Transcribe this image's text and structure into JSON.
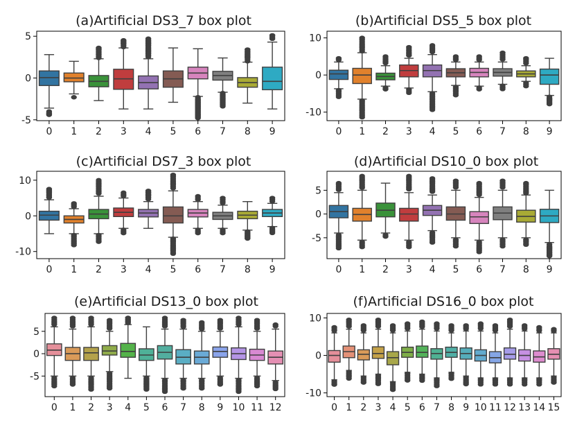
{
  "chart_data": [
    {
      "type": "box",
      "title": "(a)Artificial DS3_7 box plot",
      "categories": [
        "0",
        "1",
        "2",
        "3",
        "4",
        "5",
        "6",
        "7",
        "8",
        "9"
      ],
      "ylim": [
        -5.1,
        5.6
      ],
      "yticks": [
        -5,
        0,
        5
      ],
      "colors": [
        "#3274a1",
        "#e1812c",
        "#3a923a",
        "#c03d3e",
        "#9372b2",
        "#845b53",
        "#d684bd",
        "#7f7f7f",
        "#a9aa35",
        "#2eaac3"
      ],
      "boxes": [
        {
          "q1": -0.9,
          "med": 0.05,
          "q3": 0.85,
          "lo": -3.6,
          "hi": 2.8,
          "flo": -4.5,
          "fhi": -4.2
        },
        {
          "q1": -0.45,
          "med": 0.0,
          "q3": 0.6,
          "lo": -1.9,
          "hi": 2.0,
          "flo": -2.3,
          "fhi": -1.9
        },
        {
          "q1": -1.05,
          "med": -0.4,
          "q3": 0.3,
          "lo": -2.7,
          "hi": 2.3,
          "flo": 2.4,
          "fhi": 3.6
        },
        {
          "q1": -1.35,
          "med": -0.1,
          "q3": 1.05,
          "lo": -3.7,
          "hi": 3.6,
          "flo": 3.7,
          "fhi": 4.5
        },
        {
          "q1": -1.3,
          "med": -0.55,
          "q3": 0.25,
          "lo": -3.7,
          "hi": 2.3,
          "flo": 2.4,
          "fhi": 4.7
        },
        {
          "q1": -1.1,
          "med": -0.1,
          "q3": 0.85,
          "lo": -2.9,
          "hi": 3.6,
          "flo": null,
          "fhi": null
        },
        {
          "q1": -0.1,
          "med": 0.6,
          "q3": 1.3,
          "lo": -2.2,
          "hi": 3.5,
          "flo": -4.8,
          "fhi": -2.3
        },
        {
          "q1": -0.25,
          "med": 0.3,
          "q3": 0.8,
          "lo": -1.7,
          "hi": 2.4,
          "flo": -3.4,
          "fhi": -1.8
        },
        {
          "q1": -1.1,
          "med": -0.55,
          "q3": 0.05,
          "lo": -3.0,
          "hi": 1.9,
          "flo": 2.0,
          "fhi": 3.4
        },
        {
          "q1": -1.4,
          "med": -0.4,
          "q3": 1.3,
          "lo": -3.7,
          "hi": 4.3,
          "flo": 4.6,
          "fhi": 5.1
        }
      ]
    },
    {
      "type": "box",
      "title": "(b)Artificial DS5_5 box plot",
      "categories": [
        "0",
        "1",
        "2",
        "3",
        "4",
        "5",
        "6",
        "7",
        "8",
        "9"
      ],
      "ylim": [
        -12.3,
        11.8
      ],
      "yticks": [
        -10,
        0,
        10
      ],
      "colors": [
        "#3274a1",
        "#e1812c",
        "#3a923a",
        "#c03d3e",
        "#9372b2",
        "#845b53",
        "#d684bd",
        "#7f7f7f",
        "#a9aa35",
        "#2eaac3"
      ],
      "boxes": [
        {
          "q1": -1.2,
          "med": 0.3,
          "q3": 1.3,
          "lo": -3.7,
          "hi": 3.5,
          "flo": -6.0,
          "fhi": 4.5
        },
        {
          "q1": -2.3,
          "med": 0.0,
          "q3": 1.8,
          "lo": -6.5,
          "hi": 6.0,
          "flo": -11.5,
          "fhi": 10.0
        },
        {
          "q1": -1.3,
          "med": -0.4,
          "q3": 0.5,
          "lo": -3.0,
          "hi": 2.5,
          "flo": -4.0,
          "fhi": 5.0
        },
        {
          "q1": -0.5,
          "med": 1.2,
          "q3": 2.7,
          "lo": -3.5,
          "hi": 4.5,
          "flo": -5.0,
          "fhi": 7.5
        },
        {
          "q1": -0.5,
          "med": 1.2,
          "q3": 2.7,
          "lo": -4.5,
          "hi": 5.5,
          "flo": -9.5,
          "fhi": 8.0
        },
        {
          "q1": -0.5,
          "med": 0.6,
          "q3": 1.7,
          "lo": -2.8,
          "hi": 3.5,
          "flo": -5.5,
          "fhi": 5.0
        },
        {
          "q1": -0.5,
          "med": 0.7,
          "q3": 1.8,
          "lo": -3.0,
          "hi": 3.5,
          "flo": -4.0,
          "fhi": 5.0
        },
        {
          "q1": -0.3,
          "med": 0.7,
          "q3": 1.7,
          "lo": -2.5,
          "hi": 3.5,
          "flo": -4.0,
          "fhi": 6.0
        },
        {
          "q1": -0.5,
          "med": 0.3,
          "q3": 1.1,
          "lo": -1.7,
          "hi": 2.5,
          "flo": -3.0,
          "fhi": 4.5
        },
        {
          "q1": -2.5,
          "med": 0.0,
          "q3": 1.6,
          "lo": -5.5,
          "hi": 4.5,
          "flo": -8.0,
          "fhi": -6.5
        }
      ]
    },
    {
      "type": "box",
      "title": "(c)Artificial DS7_3 box plot",
      "categories": [
        "0",
        "1",
        "2",
        "3",
        "4",
        "5",
        "6",
        "7",
        "8",
        "9"
      ],
      "ylim": [
        -12.0,
        12.5
      ],
      "yticks": [
        -10,
        0,
        10
      ],
      "colors": [
        "#3274a1",
        "#e1812c",
        "#3a923a",
        "#c03d3e",
        "#9372b2",
        "#845b53",
        "#d684bd",
        "#7f7f7f",
        "#a9aa35",
        "#2eaac3"
      ],
      "boxes": [
        {
          "q1": -1.2,
          "med": 0.2,
          "q3": 1.3,
          "lo": -5.0,
          "hi": 4.5,
          "flo": 5.0,
          "fhi": 7.5
        },
        {
          "q1": -2.0,
          "med": -1.0,
          "q3": 0.0,
          "lo": -5.0,
          "hi": 2.0,
          "flo": -8.5,
          "fhi": 3.5
        },
        {
          "q1": -0.8,
          "med": 0.5,
          "q3": 1.8,
          "lo": -5.0,
          "hi": 5.5,
          "flo": -7.5,
          "fhi": 10.0
        },
        {
          "q1": -0.2,
          "med": 1.0,
          "q3": 2.2,
          "lo": -3.5,
          "hi": 5.0,
          "flo": -5.0,
          "fhi": 6.5
        },
        {
          "q1": -0.3,
          "med": 0.8,
          "q3": 1.8,
          "lo": -3.5,
          "hi": 4.0,
          "flo": 5.0,
          "fhi": 7.0
        },
        {
          "q1": -2.0,
          "med": 0.0,
          "q3": 2.5,
          "lo": -6.0,
          "hi": 7.0,
          "flo": -11.0,
          "fhi": 11.5
        },
        {
          "q1": -0.3,
          "med": 0.8,
          "q3": 1.8,
          "lo": -3.5,
          "hi": 4.0,
          "flo": -5.0,
          "fhi": 5.5
        },
        {
          "q1": -1.0,
          "med": 0.0,
          "q3": 1.0,
          "lo": -3.5,
          "hi": 3.0,
          "flo": -5.0,
          "fhi": 5.0
        },
        {
          "q1": -0.8,
          "med": 0.2,
          "q3": 1.3,
          "lo": -4.0,
          "hi": 4.0,
          "flo": -6.5,
          "fhi": -4.5
        },
        {
          "q1": -0.2,
          "med": 0.8,
          "q3": 1.8,
          "lo": -3.0,
          "hi": 3.5,
          "flo": -5.0,
          "fhi": 5.0
        }
      ]
    },
    {
      "type": "box",
      "title": "(d)Artificial DS10_0 box plot",
      "categories": [
        "0",
        "1",
        "2",
        "3",
        "4",
        "5",
        "6",
        "7",
        "8",
        "9"
      ],
      "ylim": [
        -9.4,
        9.0
      ],
      "yticks": [
        -5,
        0,
        5
      ],
      "colors": [
        "#3274a1",
        "#e1812c",
        "#3a923a",
        "#c03d3e",
        "#9372b2",
        "#845b53",
        "#d684bd",
        "#7f7f7f",
        "#a9aa35",
        "#2eaac3"
      ],
      "boxes": [
        {
          "q1": -0.8,
          "med": 0.5,
          "q3": 1.8,
          "lo": -4.0,
          "hi": 4.5,
          "flo": -7.5,
          "fhi": 6.5
        },
        {
          "q1": -1.5,
          "med": -0.1,
          "q3": 1.2,
          "lo": -5.5,
          "hi": 5.0,
          "flo": -7.0,
          "fhi": 8.0
        },
        {
          "q1": -0.6,
          "med": 0.8,
          "q3": 2.3,
          "lo": -4.0,
          "hi": 6.5,
          "flo": -5.0,
          "fhi": 6.5
        },
        {
          "q1": -1.5,
          "med": 0.0,
          "q3": 1.2,
          "lo": -5.5,
          "hi": 4.5,
          "flo": -7.0,
          "fhi": 8.0
        },
        {
          "q1": -0.3,
          "med": 0.8,
          "q3": 1.8,
          "lo": -3.5,
          "hi": 4.0,
          "flo": -6.0,
          "fhi": 7.5
        },
        {
          "q1": -1.3,
          "med": 0.0,
          "q3": 1.5,
          "lo": -5.0,
          "hi": 5.0,
          "flo": -7.0,
          "fhi": 7.0
        },
        {
          "q1": -2.0,
          "med": -0.6,
          "q3": 0.5,
          "lo": -5.5,
          "hi": 3.5,
          "flo": -8.0,
          "fhi": 6.5
        },
        {
          "q1": -1.2,
          "med": 0.2,
          "q3": 1.5,
          "lo": -5.0,
          "hi": 5.0,
          "flo": -7.0,
          "fhi": 7.0
        },
        {
          "q1": -1.7,
          "med": -0.5,
          "q3": 0.8,
          "lo": -5.0,
          "hi": 4.0,
          "flo": -6.5,
          "fhi": 6.5
        },
        {
          "q1": -1.8,
          "med": -0.4,
          "q3": 1.0,
          "lo": -6.0,
          "hi": 5.0,
          "flo": -9.0,
          "fhi": -7.0
        }
      ]
    },
    {
      "type": "box",
      "title": "(e)Artificial DS13_0 box plot",
      "categories": [
        "0",
        "1",
        "2",
        "3",
        "4",
        "5",
        "6",
        "7",
        "8",
        "9",
        "10",
        "11",
        "12"
      ],
      "ylim": [
        -9.6,
        9.0
      ],
      "yticks": [
        -5,
        0,
        5
      ],
      "colors": [
        "#e1812c",
        "#3a923a",
        "#c03d3e",
        "#9372b2",
        "#845b53",
        "#d684bd",
        "#7f7f7f",
        "#a9aa35",
        "#2eaac3"
      ],
      "colors_full": [
        "#e58f9a",
        "#d99a59",
        "#b4a24b",
        "#90ac4a",
        "#54b34a",
        "#4fb198",
        "#52ae9f",
        "#5aaec4",
        "#6aaad6",
        "#8aa4ea",
        "#b495e6",
        "#d889d2",
        "#e58fb3"
      ],
      "boxes": [
        {
          "q1": -0.4,
          "med": 0.8,
          "q3": 2.2,
          "lo": -5.0,
          "hi": 6.0,
          "flo": -7.5,
          "fhi": 8.0
        },
        {
          "q1": -1.5,
          "med": 0.0,
          "q3": 1.4,
          "lo": -5.0,
          "hi": 5.5,
          "flo": -7.0,
          "fhi": 8.0
        },
        {
          "q1": -1.5,
          "med": 0.2,
          "q3": 1.4,
          "lo": -5.0,
          "hi": 6.0,
          "flo": -8.0,
          "fhi": 8.0
        },
        {
          "q1": -0.3,
          "med": 0.6,
          "q3": 1.8,
          "lo": -4.0,
          "hi": 5.0,
          "flo": -8.0,
          "fhi": 7.5
        },
        {
          "q1": -0.8,
          "med": 0.5,
          "q3": 2.3,
          "lo": -5.5,
          "hi": 6.5,
          "flo": 6.8,
          "fhi": 8.0
        },
        {
          "q1": -1.5,
          "med": -0.3,
          "q3": 1.1,
          "lo": -5.0,
          "hi": 6.0,
          "flo": -8.0,
          "fhi": -5.5
        },
        {
          "q1": -1.2,
          "med": 0.3,
          "q3": 1.8,
          "lo": -5.5,
          "hi": 5.5,
          "flo": -8.5,
          "fhi": 8.0
        },
        {
          "q1": -2.3,
          "med": -0.8,
          "q3": 0.9,
          "lo": -5.5,
          "hi": 5.5,
          "flo": -8.0,
          "fhi": 7.5
        },
        {
          "q1": -2.3,
          "med": -0.8,
          "q3": 0.6,
          "lo": -5.5,
          "hi": 5.0,
          "flo": -8.0,
          "fhi": 7.0
        },
        {
          "q1": -0.8,
          "med": 0.5,
          "q3": 1.5,
          "lo": -5.0,
          "hi": 5.0,
          "flo": -7.0,
          "fhi": 7.5
        },
        {
          "q1": -1.3,
          "med": 0.0,
          "q3": 1.3,
          "lo": -5.5,
          "hi": 6.0,
          "flo": -8.5,
          "fhi": 8.0
        },
        {
          "q1": -1.5,
          "med": -0.3,
          "q3": 1.0,
          "lo": -5.0,
          "hi": 5.0,
          "flo": -7.5,
          "fhi": 7.5
        },
        {
          "q1": -2.3,
          "med": -0.8,
          "q3": 0.6,
          "lo": -6.0,
          "hi": 5.5,
          "flo": -8.0,
          "fhi": 6.5
        }
      ]
    },
    {
      "type": "box",
      "title": "(f)Artificial DS16_0 box plot",
      "categories": [
        "0",
        "1",
        "2",
        "3",
        "4",
        "5",
        "6",
        "7",
        "8",
        "9",
        "10",
        "11",
        "12",
        "13",
        "14",
        "15"
      ],
      "ylim": [
        -11.0,
        11.2
      ],
      "yticks": [
        -10,
        0,
        10
      ],
      "colors_full": [
        "#e58f9a",
        "#e49177",
        "#d99a59",
        "#c4a148",
        "#a8a74a",
        "#7fae48",
        "#53b25a",
        "#4fb193",
        "#50afa6",
        "#55adba",
        "#62abcf",
        "#85a6e6",
        "#a69ce9",
        "#c790e3",
        "#de8ccf",
        "#e68fb2"
      ],
      "boxes": [
        {
          "q1": -1.8,
          "med": 0.0,
          "q3": 1.3,
          "lo": -6.5,
          "hi": 6.0,
          "flo": -8.0,
          "fhi": 7.5
        },
        {
          "q1": -0.6,
          "med": 1.0,
          "q3": 2.5,
          "lo": -4.0,
          "hi": 7.0,
          "flo": -6.5,
          "fhi": 9.5
        },
        {
          "q1": -1.2,
          "med": 0.3,
          "q3": 1.5,
          "lo": -5.5,
          "hi": 6.0,
          "flo": -7.5,
          "fhi": 8.0
        },
        {
          "q1": -0.8,
          "med": 0.5,
          "q3": 2.3,
          "lo": -5.0,
          "hi": 7.0,
          "flo": -8.0,
          "fhi": 9.5
        },
        {
          "q1": -2.5,
          "med": -0.6,
          "q3": 1.0,
          "lo": -7.0,
          "hi": 6.0,
          "flo": -9.5,
          "fhi": 8.0
        },
        {
          "q1": -0.5,
          "med": 0.8,
          "q3": 2.2,
          "lo": -4.5,
          "hi": 6.5,
          "flo": -7.0,
          "fhi": 8.5
        },
        {
          "q1": -0.5,
          "med": 0.8,
          "q3": 2.5,
          "lo": -5.0,
          "hi": 7.0,
          "flo": -7.0,
          "fhi": 9.0
        },
        {
          "q1": -1.0,
          "med": 0.5,
          "q3": 1.8,
          "lo": -6.0,
          "hi": 6.5,
          "flo": -8.5,
          "fhi": 8.5
        },
        {
          "q1": -0.5,
          "med": 0.8,
          "q3": 2.2,
          "lo": -4.5,
          "hi": 6.0,
          "flo": -6.5,
          "fhi": 8.0
        },
        {
          "q1": -1.0,
          "med": 0.5,
          "q3": 2.0,
          "lo": -5.5,
          "hi": 6.5,
          "flo": -8.0,
          "fhi": 8.0
        },
        {
          "q1": -1.5,
          "med": 0.0,
          "q3": 1.5,
          "lo": -6.0,
          "hi": 6.5,
          "flo": -8.0,
          "fhi": 8.5
        },
        {
          "q1": -2.0,
          "med": -0.6,
          "q3": 1.0,
          "lo": -6.0,
          "hi": 6.0,
          "flo": -8.0,
          "fhi": 8.0
        },
        {
          "q1": -1.0,
          "med": 0.3,
          "q3": 2.0,
          "lo": -6.0,
          "hi": 7.0,
          "flo": -8.0,
          "fhi": 9.5
        },
        {
          "q1": -1.5,
          "med": 0.0,
          "q3": 1.5,
          "lo": -6.0,
          "hi": 6.5,
          "flo": -8.0,
          "fhi": 8.0
        },
        {
          "q1": -1.8,
          "med": -0.4,
          "q3": 1.2,
          "lo": -6.0,
          "hi": 6.0,
          "flo": -8.0,
          "fhi": 7.5
        },
        {
          "q1": -1.0,
          "med": 0.3,
          "q3": 1.8,
          "lo": -5.5,
          "hi": 6.0,
          "flo": -7.5,
          "fhi": 7.0
        }
      ]
    }
  ]
}
